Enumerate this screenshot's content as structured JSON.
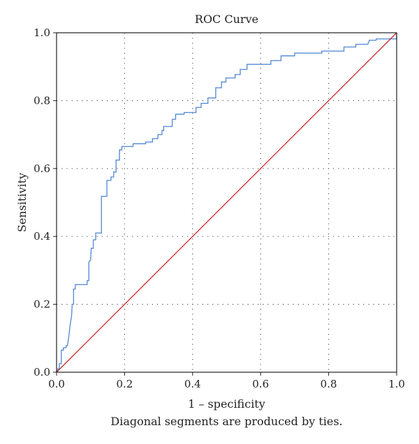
{
  "chart_data": {
    "type": "line",
    "title": "ROC Curve",
    "xlabel": "1 – specificity",
    "ylabel": "Sensitivity",
    "footnote": "Diagonal segments are produced by ties.",
    "xlim": [
      0,
      1
    ],
    "ylim": [
      0,
      1
    ],
    "x_ticks": [
      "0.0",
      "0.2",
      "0.4",
      "0.6",
      "0.8",
      "1.0"
    ],
    "y_ticks": [
      "0.0",
      "0.2",
      "0.4",
      "0.6",
      "0.8",
      "1.0"
    ],
    "grid": "dotted",
    "series": [
      {
        "role": "roc",
        "color": "#5b8fd6",
        "points": [
          [
            0.0,
            0.0
          ],
          [
            0.004,
            0.01
          ],
          [
            0.008,
            0.01
          ],
          [
            0.008,
            0.025
          ],
          [
            0.014,
            0.025
          ],
          [
            0.014,
            0.065
          ],
          [
            0.02,
            0.065
          ],
          [
            0.02,
            0.072
          ],
          [
            0.028,
            0.072
          ],
          [
            0.028,
            0.078
          ],
          [
            0.032,
            0.078
          ],
          [
            0.036,
            0.105
          ],
          [
            0.04,
            0.14
          ],
          [
            0.044,
            0.165
          ],
          [
            0.046,
            0.2
          ],
          [
            0.05,
            0.2
          ],
          [
            0.05,
            0.245
          ],
          [
            0.055,
            0.245
          ],
          [
            0.055,
            0.258
          ],
          [
            0.09,
            0.258
          ],
          [
            0.09,
            0.27
          ],
          [
            0.095,
            0.27
          ],
          [
            0.095,
            0.325
          ],
          [
            0.1,
            0.33
          ],
          [
            0.102,
            0.365
          ],
          [
            0.108,
            0.365
          ],
          [
            0.108,
            0.39
          ],
          [
            0.115,
            0.39
          ],
          [
            0.115,
            0.41
          ],
          [
            0.132,
            0.41
          ],
          [
            0.132,
            0.518
          ],
          [
            0.148,
            0.518
          ],
          [
            0.148,
            0.565
          ],
          [
            0.16,
            0.565
          ],
          [
            0.16,
            0.575
          ],
          [
            0.168,
            0.575
          ],
          [
            0.168,
            0.59
          ],
          [
            0.175,
            0.59
          ],
          [
            0.175,
            0.625
          ],
          [
            0.185,
            0.625
          ],
          [
            0.185,
            0.655
          ],
          [
            0.192,
            0.655
          ],
          [
            0.192,
            0.665
          ],
          [
            0.225,
            0.665
          ],
          [
            0.225,
            0.673
          ],
          [
            0.262,
            0.673
          ],
          [
            0.262,
            0.678
          ],
          [
            0.282,
            0.678
          ],
          [
            0.282,
            0.688
          ],
          [
            0.298,
            0.688
          ],
          [
            0.298,
            0.7
          ],
          [
            0.31,
            0.7
          ],
          [
            0.31,
            0.712
          ],
          [
            0.315,
            0.712
          ],
          [
            0.315,
            0.724
          ],
          [
            0.34,
            0.724
          ],
          [
            0.34,
            0.745
          ],
          [
            0.35,
            0.745
          ],
          [
            0.35,
            0.76
          ],
          [
            0.375,
            0.76
          ],
          [
            0.375,
            0.765
          ],
          [
            0.41,
            0.765
          ],
          [
            0.41,
            0.78
          ],
          [
            0.425,
            0.78
          ],
          [
            0.425,
            0.792
          ],
          [
            0.445,
            0.792
          ],
          [
            0.445,
            0.808
          ],
          [
            0.468,
            0.808
          ],
          [
            0.468,
            0.838
          ],
          [
            0.485,
            0.838
          ],
          [
            0.485,
            0.855
          ],
          [
            0.498,
            0.855
          ],
          [
            0.498,
            0.867
          ],
          [
            0.525,
            0.867
          ],
          [
            0.525,
            0.877
          ],
          [
            0.54,
            0.877
          ],
          [
            0.54,
            0.892
          ],
          [
            0.56,
            0.892
          ],
          [
            0.56,
            0.907
          ],
          [
            0.63,
            0.907
          ],
          [
            0.63,
            0.918
          ],
          [
            0.66,
            0.918
          ],
          [
            0.66,
            0.932
          ],
          [
            0.7,
            0.932
          ],
          [
            0.7,
            0.94
          ],
          [
            0.78,
            0.94
          ],
          [
            0.78,
            0.946
          ],
          [
            0.845,
            0.946
          ],
          [
            0.845,
            0.958
          ],
          [
            0.88,
            0.958
          ],
          [
            0.88,
            0.966
          ],
          [
            0.915,
            0.966
          ],
          [
            0.92,
            0.978
          ],
          [
            0.94,
            0.978
          ],
          [
            0.94,
            0.982
          ],
          [
            1.0,
            0.982
          ],
          [
            1.0,
            1.0
          ]
        ]
      },
      {
        "role": "reference",
        "color": "#c62828",
        "points": [
          [
            0,
            0
          ],
          [
            1,
            1
          ]
        ]
      }
    ]
  }
}
